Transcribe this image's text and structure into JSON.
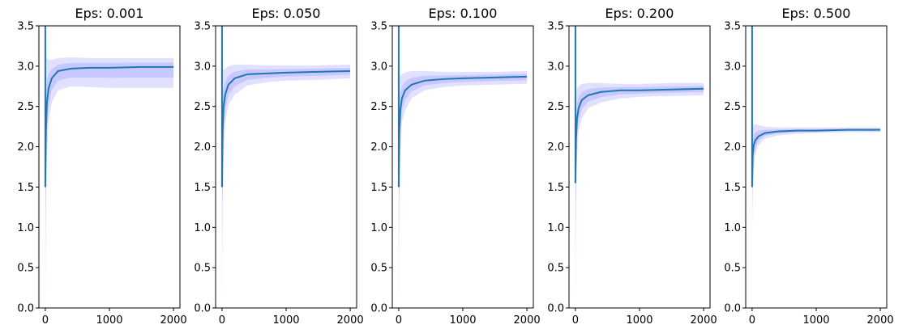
{
  "colors": {
    "line": "#1f77b4",
    "band_outer": "#d9d9ff",
    "band_inner": "#b8b8ff",
    "axis": "#000000"
  },
  "chart_data": [
    {
      "type": "line",
      "title": "Eps: 0.001",
      "xlim": [
        -100,
        2100
      ],
      "ylim": [
        0,
        3.5
      ],
      "x_ticks": [
        0,
        1000,
        2000
      ],
      "x_tick_labels": [
        "0",
        "1000",
        "2000"
      ],
      "y_ticks": [
        0,
        0.5,
        1,
        1.5,
        2,
        2.5,
        3,
        3.5
      ],
      "y_tick_labels": [
        "0.0",
        "0.5",
        "1.0",
        "1.5",
        "2.0",
        "2.5",
        "3.0",
        "3.5"
      ],
      "spike_at_x": 0,
      "series": [
        {
          "x": [
            0,
            10,
            25,
            50,
            100,
            200,
            400,
            700,
            1000,
            1500,
            2000
          ],
          "y": [
            1.5,
            2.2,
            2.55,
            2.72,
            2.85,
            2.94,
            2.97,
            2.98,
            2.98,
            2.99,
            2.99
          ],
          "lower": [
            0.0,
            1.2,
            1.9,
            2.3,
            2.55,
            2.7,
            2.75,
            2.74,
            2.73,
            2.73,
            2.73
          ],
          "upper": [
            3.5,
            3.2,
            3.1,
            3.08,
            3.08,
            3.1,
            3.11,
            3.1,
            3.1,
            3.1,
            3.1
          ]
        }
      ]
    },
    {
      "type": "line",
      "title": "Eps: 0.050",
      "xlim": [
        -100,
        2100
      ],
      "ylim": [
        0,
        3.5
      ],
      "x_ticks": [
        0,
        1000,
        2000
      ],
      "x_tick_labels": [
        "0",
        "1000",
        "2000"
      ],
      "y_ticks": [
        0,
        0.5,
        1,
        1.5,
        2,
        2.5,
        3,
        3.5
      ],
      "y_tick_labels": [
        "0.0",
        "0.5",
        "1.0",
        "1.5",
        "2.0",
        "2.5",
        "3.0",
        "3.5"
      ],
      "spike_at_x": 0,
      "series": [
        {
          "x": [
            0,
            10,
            25,
            50,
            100,
            200,
            400,
            700,
            1000,
            1500,
            2000
          ],
          "y": [
            1.5,
            2.2,
            2.5,
            2.65,
            2.77,
            2.85,
            2.9,
            2.91,
            2.92,
            2.93,
            2.94
          ],
          "lower": [
            0.0,
            1.3,
            1.9,
            2.3,
            2.52,
            2.65,
            2.76,
            2.8,
            2.82,
            2.83,
            2.85
          ],
          "upper": [
            3.3,
            3.0,
            2.95,
            2.97,
            3.0,
            3.02,
            3.02,
            3.01,
            3.01,
            3.01,
            3.02
          ]
        }
      ]
    },
    {
      "type": "line",
      "title": "Eps: 0.100",
      "xlim": [
        -100,
        2100
      ],
      "ylim": [
        0,
        3.5
      ],
      "x_ticks": [
        0,
        1000,
        2000
      ],
      "x_tick_labels": [
        "0",
        "1000",
        "2000"
      ],
      "y_ticks": [
        0,
        0.5,
        1,
        1.5,
        2,
        2.5,
        3,
        3.5
      ],
      "y_tick_labels": [
        "0.0",
        "0.5",
        "1.0",
        "1.5",
        "2.0",
        "2.5",
        "3.0",
        "3.5"
      ],
      "spike_at_x": 0,
      "series": [
        {
          "x": [
            0,
            10,
            25,
            50,
            100,
            200,
            400,
            700,
            1000,
            1500,
            2000
          ],
          "y": [
            1.5,
            2.2,
            2.45,
            2.6,
            2.7,
            2.77,
            2.82,
            2.84,
            2.85,
            2.86,
            2.87
          ],
          "lower": [
            0.0,
            1.3,
            1.9,
            2.3,
            2.45,
            2.6,
            2.7,
            2.74,
            2.76,
            2.77,
            2.78
          ],
          "upper": [
            3.2,
            2.95,
            2.88,
            2.9,
            2.92,
            2.94,
            2.94,
            2.93,
            2.93,
            2.93,
            2.94
          ]
        }
      ]
    },
    {
      "type": "line",
      "title": "Eps: 0.200",
      "xlim": [
        -100,
        2100
      ],
      "ylim": [
        0,
        3.5
      ],
      "x_ticks": [
        0,
        1000,
        2000
      ],
      "x_tick_labels": [
        "0",
        "1000",
        "2000"
      ],
      "y_ticks": [
        0,
        0.5,
        1,
        1.5,
        2,
        2.5,
        3,
        3.5
      ],
      "y_tick_labels": [
        "0.0",
        "0.5",
        "1.0",
        "1.5",
        "2.0",
        "2.5",
        "3.0",
        "3.5"
      ],
      "spike_at_x": 0,
      "series": [
        {
          "x": [
            0,
            10,
            25,
            50,
            100,
            200,
            400,
            700,
            1000,
            1500,
            2000
          ],
          "y": [
            1.55,
            2.1,
            2.35,
            2.48,
            2.58,
            2.64,
            2.68,
            2.7,
            2.7,
            2.71,
            2.72
          ],
          "lower": [
            0.0,
            1.3,
            1.85,
            2.2,
            2.35,
            2.48,
            2.55,
            2.6,
            2.62,
            2.63,
            2.64
          ],
          "upper": [
            3.0,
            2.7,
            2.72,
            2.75,
            2.78,
            2.79,
            2.79,
            2.78,
            2.78,
            2.79,
            2.79
          ]
        }
      ]
    },
    {
      "type": "line",
      "title": "Eps: 0.500",
      "xlim": [
        -100,
        2100
      ],
      "ylim": [
        0,
        3.5
      ],
      "x_ticks": [
        0,
        1000,
        2000
      ],
      "x_tick_labels": [
        "0",
        "1000",
        "2000"
      ],
      "y_ticks": [
        0,
        0.5,
        1,
        1.5,
        2,
        2.5,
        3,
        3.5
      ],
      "y_tick_labels": [
        "0.0",
        "0.5",
        "1.0",
        "1.5",
        "2.0",
        "2.5",
        "3.0",
        "3.5"
      ],
      "spike_at_x": 0,
      "series": [
        {
          "x": [
            0,
            10,
            25,
            50,
            100,
            200,
            400,
            700,
            1000,
            1500,
            2000
          ],
          "y": [
            1.5,
            1.9,
            2.02,
            2.08,
            2.13,
            2.17,
            2.19,
            2.2,
            2.2,
            2.21,
            2.21
          ],
          "lower": [
            0.9,
            1.5,
            1.75,
            1.9,
            2.02,
            2.1,
            2.14,
            2.16,
            2.17,
            2.18,
            2.18
          ],
          "upper": [
            2.4,
            2.25,
            2.27,
            2.28,
            2.27,
            2.25,
            2.24,
            2.24,
            2.24,
            2.24,
            2.24
          ]
        }
      ]
    }
  ]
}
